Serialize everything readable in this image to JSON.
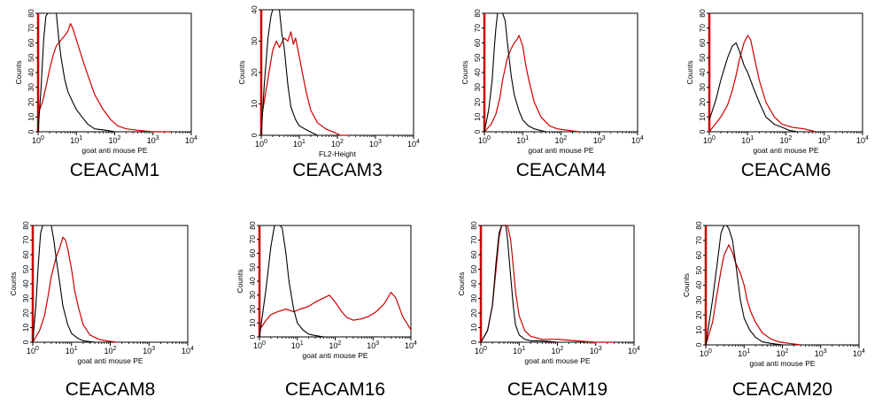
{
  "colors": {
    "control": "#000000",
    "stained": "#cc0000",
    "frame": "#000000",
    "background": "#ffffff"
  },
  "chart_data": [
    {
      "type": "line",
      "title": "CEACAM1",
      "xlabel": "goat anti mouse PE",
      "ylabel": "Counts",
      "xscale": "log",
      "xlim": [
        1,
        10000
      ],
      "ylim": [
        0,
        80
      ],
      "xticks": [
        "10^0",
        "10^1",
        "10^2",
        "10^3",
        "10^4"
      ],
      "yticks": [
        0,
        10,
        20,
        30,
        40,
        50,
        60,
        70,
        80
      ],
      "series": [
        {
          "role": "control",
          "x": [
            1.0,
            1.2,
            1.4,
            1.6,
            1.8,
            2.0,
            2.5,
            3.0,
            3.5,
            4.0,
            5.0,
            6.0,
            8.0,
            10.0,
            14.0,
            20.0,
            30.0,
            60.0,
            100.0,
            200.0
          ],
          "y": [
            0,
            30,
            62,
            78,
            80,
            80,
            80,
            80,
            62,
            50,
            35,
            27,
            20,
            15,
            10,
            5,
            2,
            1,
            0,
            0
          ]
        },
        {
          "role": "stained",
          "x": [
            1.0,
            1.3,
            1.6,
            2.0,
            2.5,
            3.0,
            4.0,
            5.0,
            6.0,
            7.0,
            8.0,
            10.0,
            14.0,
            20.0,
            30.0,
            50.0,
            80.0,
            120.0,
            200.0,
            400.0,
            1000.0,
            3000.0
          ],
          "y": [
            12,
            20,
            30,
            42,
            52,
            58,
            62,
            65,
            68,
            73,
            70,
            62,
            50,
            38,
            25,
            15,
            8,
            4,
            2,
            1,
            0,
            0
          ]
        }
      ]
    },
    {
      "type": "line",
      "title": "CEACAM3",
      "xlabel": "FL2-Height",
      "ylabel": "Counts",
      "xscale": "log",
      "xlim": [
        1,
        10000
      ],
      "ylim": [
        0,
        40
      ],
      "xticks": [
        "10^0",
        "10^1",
        "10^2",
        "10^3",
        "10^4"
      ],
      "yticks": [
        0,
        10,
        20,
        30,
        40
      ],
      "series": [
        {
          "role": "control",
          "x": [
            1.0,
            1.2,
            1.5,
            1.8,
            2.0,
            2.5,
            3.0,
            3.5,
            4.0,
            5.0,
            6.0,
            8.0,
            10.0,
            14.0,
            20.0,
            30.0,
            50.0
          ],
          "y": [
            0,
            16,
            31,
            38,
            40,
            40,
            40,
            32,
            28,
            16,
            9,
            5,
            3,
            2,
            1,
            0,
            0
          ]
        },
        {
          "role": "stained",
          "x": [
            1.0,
            1.5,
            2.0,
            2.5,
            3.0,
            4.0,
            5.0,
            6.0,
            7.0,
            8.0,
            10.0,
            12.0,
            15.0,
            20.0,
            30.0,
            50.0,
            80.0,
            120.0,
            200.0
          ],
          "y": [
            5,
            18,
            27,
            30,
            28,
            31,
            30,
            33,
            29,
            31,
            25,
            20,
            14,
            8,
            4,
            2,
            1,
            0,
            0
          ]
        }
      ]
    },
    {
      "type": "line",
      "title": "CEACAM4",
      "xlabel": "goat anti mouse PE",
      "ylabel": "Counts",
      "xscale": "log",
      "xlim": [
        1,
        10000
      ],
      "ylim": [
        0,
        80
      ],
      "xticks": [
        "10^0",
        "10^1",
        "10^2",
        "10^3",
        "10^4"
      ],
      "yticks": [
        0,
        10,
        20,
        30,
        40,
        50,
        60,
        70,
        80
      ],
      "series": [
        {
          "role": "control",
          "x": [
            1.0,
            1.3,
            1.6,
            1.8,
            2.0,
            2.2,
            2.5,
            3.0,
            3.5,
            4.0,
            5.0,
            6.0,
            8.0,
            10.0,
            14.0,
            20.0,
            40.0,
            80.0
          ],
          "y": [
            0,
            15,
            35,
            55,
            70,
            80,
            80,
            80,
            75,
            60,
            38,
            25,
            14,
            8,
            4,
            2,
            0,
            0
          ]
        },
        {
          "role": "stained",
          "x": [
            1.0,
            1.5,
            2.0,
            2.5,
            3.0,
            4.0,
            5.0,
            6.0,
            7.0,
            8.0,
            10.0,
            12.0,
            15.0,
            20.0,
            30.0,
            50.0,
            80.0,
            150.0,
            300.0
          ],
          "y": [
            0,
            5,
            12,
            22,
            35,
            50,
            56,
            60,
            62,
            65,
            58,
            45,
            33,
            20,
            10,
            4,
            2,
            1,
            0
          ]
        }
      ]
    },
    {
      "type": "line",
      "title": "CEACAM6",
      "xlabel": "goat anti mouse PE",
      "ylabel": "Counts",
      "xscale": "log",
      "xlim": [
        1,
        10000
      ],
      "ylim": [
        0,
        80
      ],
      "xticks": [
        "10^0",
        "10^1",
        "10^2",
        "10^3",
        "10^4"
      ],
      "yticks": [
        0,
        10,
        20,
        30,
        40,
        50,
        60,
        70,
        80
      ],
      "series": [
        {
          "role": "control",
          "x": [
            1.0,
            1.5,
            2.0,
            3.0,
            4.0,
            5.0,
            6.0,
            8.0,
            10.0,
            14.0,
            20.0,
            30.0,
            50.0,
            80.0,
            120.0,
            200.0
          ],
          "y": [
            8,
            22,
            35,
            50,
            58,
            60,
            55,
            45,
            40,
            30,
            20,
            10,
            5,
            3,
            1,
            0
          ]
        },
        {
          "role": "stained",
          "x": [
            1.0,
            2.0,
            3.0,
            4.0,
            5.0,
            6.0,
            8.0,
            10.0,
            12.0,
            15.0,
            20.0,
            30.0,
            50.0,
            80.0,
            150.0,
            300.0,
            600.0
          ],
          "y": [
            0,
            10,
            18,
            28,
            38,
            48,
            60,
            65,
            62,
            50,
            35,
            20,
            10,
            5,
            3,
            2,
            0
          ]
        }
      ]
    },
    {
      "type": "line",
      "title": "CEACAM8",
      "xlabel": "goat anti mouse PE",
      "ylabel": "Counts",
      "xscale": "log",
      "xlim": [
        1,
        10000
      ],
      "ylim": [
        0,
        80
      ],
      "xticks": [
        "10^0",
        "10^1",
        "10^2",
        "10^3",
        "10^4"
      ],
      "yticks": [
        0,
        10,
        20,
        30,
        40,
        50,
        60,
        70,
        80
      ],
      "series": [
        {
          "role": "control",
          "x": [
            1.0,
            1.2,
            1.4,
            1.6,
            1.8,
            2.0,
            2.5,
            3.0,
            3.5,
            4.0,
            5.0,
            6.0,
            8.0,
            10.0,
            14.0,
            20.0,
            40.0
          ],
          "y": [
            0,
            25,
            55,
            75,
            80,
            80,
            80,
            80,
            70,
            58,
            40,
            25,
            12,
            6,
            3,
            1,
            0
          ]
        },
        {
          "role": "stained",
          "x": [
            1.0,
            1.5,
            2.0,
            2.5,
            3.0,
            4.0,
            5.0,
            6.0,
            7.0,
            8.0,
            10.0,
            12.0,
            15.0,
            20.0,
            30.0,
            50.0,
            80.0,
            150.0
          ],
          "y": [
            0,
            8,
            18,
            32,
            45,
            58,
            65,
            72,
            70,
            64,
            50,
            36,
            24,
            12,
            5,
            2,
            1,
            0
          ]
        }
      ]
    },
    {
      "type": "line",
      "title": "CEACAM16",
      "xlabel": "goat anti mouse PE",
      "ylabel": "Counts",
      "xscale": "log",
      "xlim": [
        1,
        10000
      ],
      "ylim": [
        0,
        80
      ],
      "xticks": [
        "10^0",
        "10^1",
        "10^2",
        "10^3",
        "10^4"
      ],
      "yticks": [
        0,
        10,
        20,
        30,
        40,
        50,
        60,
        70,
        80
      ],
      "series": [
        {
          "role": "control",
          "x": [
            1.0,
            1.5,
            2.0,
            2.5,
            3.0,
            3.5,
            4.0,
            5.0,
            6.0,
            8.0,
            10.0,
            14.0,
            20.0,
            30.0,
            50.0
          ],
          "y": [
            0,
            35,
            65,
            80,
            80,
            80,
            78,
            60,
            40,
            20,
            10,
            5,
            2,
            1,
            0
          ]
        },
        {
          "role": "stained",
          "x": [
            1.0,
            1.5,
            2.0,
            3.0,
            5.0,
            8.0,
            12.0,
            20.0,
            30.0,
            50.0,
            70.0,
            100.0,
            150.0,
            200.0,
            300.0,
            500.0,
            800.0,
            1200.0,
            2000.0,
            3000.0,
            4000.0,
            6000.0,
            10000.0
          ],
          "y": [
            5,
            12,
            16,
            18,
            20,
            18,
            20,
            22,
            25,
            28,
            30,
            25,
            18,
            14,
            12,
            13,
            15,
            18,
            24,
            32,
            28,
            15,
            5
          ]
        }
      ]
    },
    {
      "type": "line",
      "title": "CEACAM19",
      "xlabel": "goat anti mouse PE",
      "ylabel": "Counts",
      "xscale": "log",
      "xlim": [
        1,
        10000
      ],
      "ylim": [
        0,
        80
      ],
      "xticks": [
        "10^0",
        "10^1",
        "10^2",
        "10^3",
        "10^4"
      ],
      "yticks": [
        0,
        10,
        20,
        30,
        40,
        50,
        60,
        70,
        80
      ],
      "series": [
        {
          "role": "control",
          "x": [
            1.0,
            1.5,
            2.0,
            2.5,
            3.0,
            3.5,
            4.0,
            4.5,
            5.0,
            6.0,
            7.0,
            8.0,
            10.0,
            14.0,
            20.0,
            40.0,
            100.0,
            400.0
          ],
          "y": [
            0,
            8,
            25,
            55,
            75,
            80,
            80,
            80,
            70,
            45,
            25,
            12,
            5,
            2,
            1,
            1,
            0,
            0
          ]
        },
        {
          "role": "stained",
          "x": [
            1.0,
            1.5,
            2.0,
            2.5,
            3.0,
            3.5,
            4.0,
            5.0,
            6.0,
            7.0,
            8.0,
            10.0,
            14.0,
            20.0,
            40.0,
            100.0,
            300.0,
            1000.0,
            3000.0
          ],
          "y": [
            0,
            8,
            25,
            50,
            72,
            80,
            80,
            80,
            70,
            52,
            35,
            18,
            8,
            4,
            2,
            2,
            1,
            0,
            0
          ]
        }
      ]
    },
    {
      "type": "line",
      "title": "CEACAM20",
      "xlabel": "goat anti mouse PE",
      "ylabel": "Counts",
      "xscale": "log",
      "xlim": [
        1,
        10000
      ],
      "ylim": [
        0,
        80
      ],
      "xticks": [
        "10^0",
        "10^1",
        "10^2",
        "10^3",
        "10^4"
      ],
      "yticks": [
        0,
        10,
        20,
        30,
        40,
        50,
        60,
        70,
        80
      ],
      "series": [
        {
          "role": "control",
          "x": [
            1.0,
            1.5,
            2.0,
            2.5,
            3.0,
            3.5,
            4.0,
            5.0,
            6.0,
            8.0,
            10.0,
            14.0,
            20.0,
            30.0,
            50.0,
            100.0
          ],
          "y": [
            0,
            30,
            55,
            75,
            80,
            80,
            78,
            70,
            55,
            30,
            18,
            10,
            5,
            2,
            1,
            0
          ]
        },
        {
          "role": "stained",
          "x": [
            1.0,
            1.5,
            2.0,
            2.5,
            3.0,
            4.0,
            5.0,
            6.0,
            8.0,
            10.0,
            12.0,
            15.0,
            20.0,
            30.0,
            50.0,
            80.0,
            150.0,
            300.0
          ],
          "y": [
            0,
            15,
            35,
            50,
            60,
            67,
            62,
            55,
            48,
            40,
            30,
            22,
            15,
            8,
            4,
            2,
            1,
            0
          ]
        }
      ]
    }
  ]
}
